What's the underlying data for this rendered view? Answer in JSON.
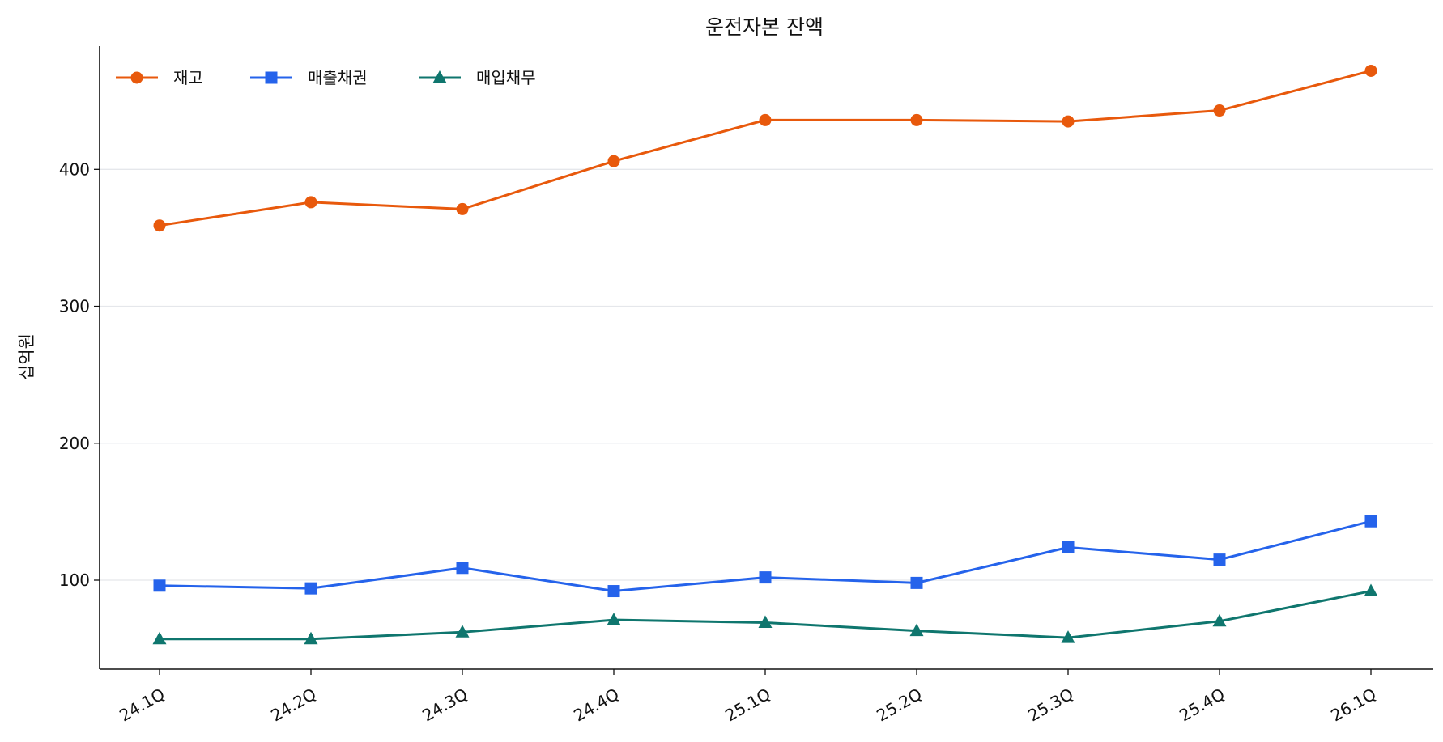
{
  "chart_data": {
    "type": "line",
    "title": "운전자본 잔액",
    "xlabel": "",
    "ylabel": "십억원",
    "categories": [
      "24.1Q",
      "24.2Q",
      "24.3Q",
      "24.4Q",
      "25.1Q",
      "25.2Q",
      "25.3Q",
      "25.4Q",
      "26.1Q"
    ],
    "ylim": [
      35,
      490
    ],
    "yticks": [
      100,
      200,
      300,
      400
    ],
    "grid": "horizontal",
    "legend_position": "top-left",
    "series": [
      {
        "name": "재고",
        "color": "#e8590c",
        "marker": "circle",
        "values": [
          359,
          376,
          371,
          406,
          436,
          436,
          435,
          443,
          472
        ]
      },
      {
        "name": "매출채권",
        "color": "#2563eb",
        "marker": "square",
        "values": [
          96,
          94,
          109,
          92,
          102,
          98,
          124,
          115,
          143
        ]
      },
      {
        "name": "매입채무",
        "color": "#0f766e",
        "marker": "triangle",
        "values": [
          57,
          57,
          62,
          71,
          69,
          63,
          58,
          70,
          92
        ]
      }
    ]
  }
}
